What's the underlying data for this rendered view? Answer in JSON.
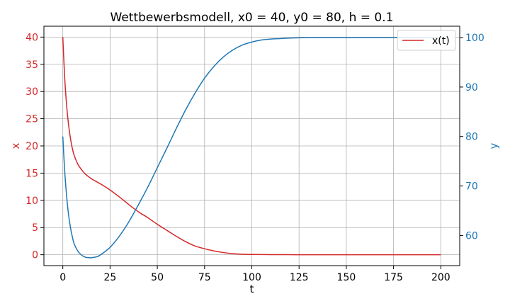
{
  "chart_data": {
    "type": "line",
    "title": "Wettbewerbsmodell, x0 = 40, y0 = 80, h = 0.1",
    "xlabel": "t",
    "ylabel_left": "x",
    "ylabel_right": "y",
    "xlim": [
      -10,
      210
    ],
    "ylim_left": [
      -2,
      42
    ],
    "ylim_right": [
      53.9,
      102.3
    ],
    "xticks": [
      "0",
      "25",
      "50",
      "75",
      "100",
      "125",
      "150",
      "175",
      "200"
    ],
    "yticks_left": [
      "0",
      "5",
      "10",
      "15",
      "20",
      "25",
      "30",
      "35",
      "40"
    ],
    "yticks_right": [
      "60",
      "70",
      "80",
      "90",
      "100"
    ],
    "grid": true,
    "legend": {
      "position": "top-right",
      "entries": [
        "x(t)"
      ]
    },
    "colors": {
      "x": "#d62728",
      "y": "#1f77b4"
    },
    "series": [
      {
        "name": "x(t)",
        "axis": "left",
        "x": [
          0,
          1,
          2,
          3,
          4,
          5,
          6,
          8,
          10,
          12,
          15,
          20,
          25,
          30,
          35,
          40,
          45,
          50,
          55,
          60,
          65,
          70,
          75,
          80,
          85,
          90,
          95,
          100,
          110,
          120,
          130,
          150,
          175,
          200
        ],
        "y": [
          40,
          32.5,
          27.5,
          24.0,
          21.5,
          19.6,
          18.3,
          16.6,
          15.6,
          14.8,
          14.0,
          13.0,
          11.9,
          10.6,
          9.2,
          7.9,
          6.8,
          5.6,
          4.5,
          3.4,
          2.4,
          1.6,
          1.1,
          0.7,
          0.4,
          0.2,
          0.1,
          0.05,
          0.02,
          0.01,
          0,
          0,
          0,
          0
        ]
      },
      {
        "axis": "right",
        "x": [
          0,
          1,
          2,
          3,
          4,
          5,
          6,
          8,
          10,
          12,
          14,
          15,
          18,
          20,
          25,
          30,
          35,
          40,
          45,
          50,
          55,
          60,
          65,
          70,
          75,
          80,
          85,
          90,
          95,
          100,
          105,
          110,
          115,
          120,
          125,
          130,
          140,
          150,
          175,
          200
        ],
        "y": [
          80,
          73,
          68,
          64.3,
          61.7,
          59.8,
          58.3,
          56.8,
          56,
          55.6,
          55.5,
          55.5,
          55.7,
          56.1,
          57.6,
          59.9,
          62.8,
          66.2,
          69.8,
          73.7,
          77.6,
          81.6,
          85.4,
          88.8,
          91.8,
          94.2,
          96.1,
          97.5,
          98.5,
          99.1,
          99.5,
          99.7,
          99.8,
          99.9,
          99.95,
          100,
          100,
          100,
          100,
          100
        ]
      }
    ]
  }
}
